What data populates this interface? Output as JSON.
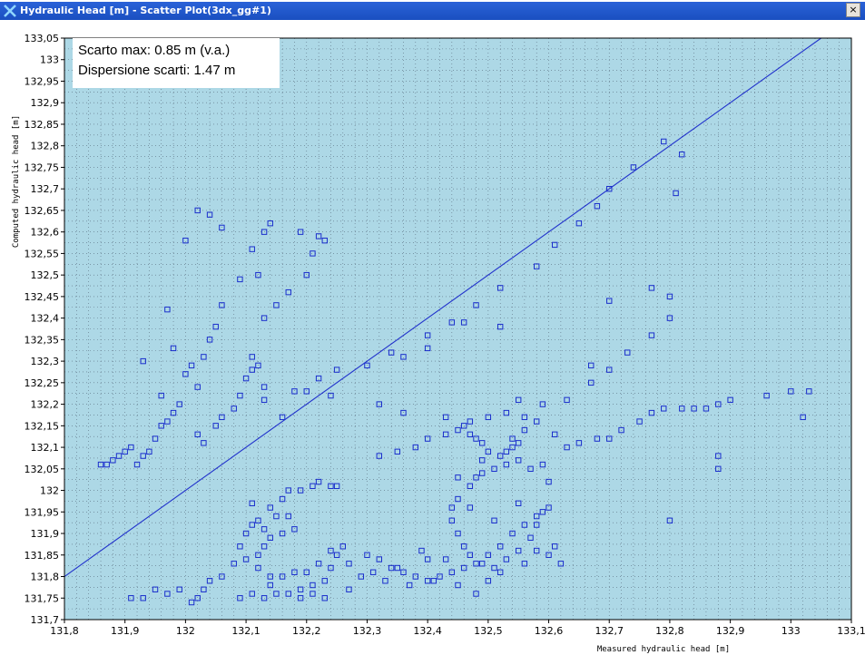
{
  "window": {
    "title": "Hydraulic Head [m] - Scatter Plot(3dx_gg#1)",
    "close_label": "×"
  },
  "info": {
    "line1": "Scarto max: 0.85 m (v.a.)",
    "line2": "Dispersione scarti: 1.47 m"
  },
  "colors": {
    "plot_background": "#add8e6",
    "marker": "#1a2ecc",
    "line": "#2233cc",
    "grid": "#5a6e80"
  },
  "chart_data": {
    "type": "scatter",
    "xlabel": "Measured hydraulic head [m]",
    "ylabel": "Computed hydraulic head [m]",
    "xlim": [
      131.8,
      133.1
    ],
    "ylim": [
      131.7,
      133.05
    ],
    "xticks": [
      "131,8",
      "131,9",
      "132",
      "132,1",
      "132,2",
      "132,3",
      "132,4",
      "132,5",
      "132,6",
      "132,7",
      "132,8",
      "132,9",
      "133",
      "133,1"
    ],
    "yticks": [
      "131,7",
      "131,75",
      "131,8",
      "131,85",
      "131,9",
      "131,95",
      "132",
      "132,05",
      "132,1",
      "132,15",
      "132,2",
      "132,25",
      "132,3",
      "132,35",
      "132,4",
      "132,45",
      "132,5",
      "132,55",
      "132,6",
      "132,65",
      "132,7",
      "132,75",
      "132,8",
      "132,85",
      "132,9",
      "132,95",
      "133",
      "133,05"
    ],
    "grid": true,
    "reference_line": {
      "from": [
        131.8,
        131.8
      ],
      "to": [
        133.05,
        133.05
      ]
    },
    "points": [
      [
        131.86,
        132.06
      ],
      [
        131.87,
        132.06
      ],
      [
        131.88,
        132.07
      ],
      [
        131.89,
        132.08
      ],
      [
        131.9,
        132.09
      ],
      [
        131.91,
        132.1
      ],
      [
        131.92,
        132.06
      ],
      [
        131.93,
        132.08
      ],
      [
        131.94,
        132.09
      ],
      [
        131.95,
        132.12
      ],
      [
        131.96,
        132.15
      ],
      [
        131.97,
        132.16
      ],
      [
        131.98,
        132.18
      ],
      [
        131.99,
        132.2
      ],
      [
        132.0,
        132.27
      ],
      [
        132.01,
        132.29
      ],
      [
        132.02,
        132.24
      ],
      [
        132.03,
        132.31
      ],
      [
        132.04,
        132.35
      ],
      [
        132.05,
        132.38
      ],
      [
        131.97,
        132.42
      ],
      [
        131.98,
        132.33
      ],
      [
        131.93,
        132.3
      ],
      [
        131.96,
        132.22
      ],
      [
        132.02,
        132.13
      ],
      [
        132.03,
        132.11
      ],
      [
        132.05,
        132.15
      ],
      [
        132.06,
        132.17
      ],
      [
        132.08,
        132.19
      ],
      [
        132.09,
        132.22
      ],
      [
        132.1,
        132.26
      ],
      [
        132.11,
        132.28
      ],
      [
        132.12,
        132.29
      ],
      [
        132.13,
        132.24
      ],
      [
        132.06,
        132.43
      ],
      [
        132.09,
        132.49
      ],
      [
        132.12,
        132.5
      ],
      [
        132.15,
        132.43
      ],
      [
        132.13,
        132.6
      ],
      [
        132.14,
        132.62
      ],
      [
        132.11,
        132.56
      ],
      [
        132.02,
        132.65
      ],
      [
        132.04,
        132.64
      ],
      [
        132.06,
        132.61
      ],
      [
        132.0,
        132.58
      ],
      [
        132.19,
        132.6
      ],
      [
        132.22,
        132.59
      ],
      [
        132.23,
        132.58
      ],
      [
        132.21,
        132.55
      ],
      [
        132.2,
        132.5
      ],
      [
        132.17,
        132.46
      ],
      [
        132.13,
        132.4
      ],
      [
        132.11,
        132.31
      ],
      [
        132.13,
        132.21
      ],
      [
        132.16,
        132.17
      ],
      [
        132.18,
        132.23
      ],
      [
        132.2,
        132.23
      ],
      [
        132.22,
        132.26
      ],
      [
        132.25,
        132.28
      ],
      [
        132.24,
        132.22
      ],
      [
        132.3,
        132.29
      ],
      [
        132.34,
        132.32
      ],
      [
        132.36,
        132.31
      ],
      [
        132.4,
        132.36
      ],
      [
        132.44,
        132.39
      ],
      [
        132.48,
        132.43
      ],
      [
        132.52,
        132.47
      ],
      [
        132.58,
        132.52
      ],
      [
        132.61,
        132.57
      ],
      [
        132.65,
        132.62
      ],
      [
        132.68,
        132.66
      ],
      [
        132.7,
        132.7
      ],
      [
        132.74,
        132.75
      ],
      [
        132.79,
        132.81
      ],
      [
        132.82,
        132.78
      ],
      [
        132.81,
        132.69
      ],
      [
        132.8,
        132.45
      ],
      [
        132.77,
        132.47
      ],
      [
        132.8,
        132.4
      ],
      [
        132.77,
        132.36
      ],
      [
        132.73,
        132.32
      ],
      [
        132.7,
        132.28
      ],
      [
        132.67,
        132.29
      ],
      [
        132.67,
        132.25
      ],
      [
        132.7,
        132.44
      ],
      [
        132.63,
        132.21
      ],
      [
        132.59,
        132.2
      ],
      [
        132.55,
        132.21
      ],
      [
        132.52,
        132.38
      ],
      [
        132.46,
        132.39
      ],
      [
        132.4,
        132.33
      ],
      [
        132.32,
        132.2
      ],
      [
        132.36,
        132.18
      ],
      [
        132.43,
        132.17
      ],
      [
        132.47,
        132.16
      ],
      [
        132.5,
        132.17
      ],
      [
        132.53,
        132.18
      ],
      [
        132.56,
        132.17
      ],
      [
        132.58,
        132.16
      ],
      [
        132.61,
        132.13
      ],
      [
        132.63,
        132.1
      ],
      [
        132.65,
        132.11
      ],
      [
        132.68,
        132.12
      ],
      [
        132.7,
        132.12
      ],
      [
        132.72,
        132.14
      ],
      [
        132.75,
        132.16
      ],
      [
        132.77,
        132.18
      ],
      [
        132.79,
        132.19
      ],
      [
        132.82,
        132.19
      ],
      [
        132.84,
        132.19
      ],
      [
        132.86,
        132.19
      ],
      [
        132.88,
        132.2
      ],
      [
        132.9,
        132.21
      ],
      [
        132.96,
        132.22
      ],
      [
        133.0,
        132.23
      ],
      [
        133.03,
        132.23
      ],
      [
        133.02,
        132.17
      ],
      [
        132.88,
        132.08
      ],
      [
        132.88,
        132.05
      ],
      [
        132.8,
        131.93
      ],
      [
        132.32,
        132.08
      ],
      [
        132.35,
        132.09
      ],
      [
        132.38,
        132.1
      ],
      [
        132.4,
        132.12
      ],
      [
        132.43,
        132.13
      ],
      [
        132.45,
        132.14
      ],
      [
        132.46,
        132.15
      ],
      [
        132.47,
        132.13
      ],
      [
        132.48,
        132.12
      ],
      [
        132.49,
        132.11
      ],
      [
        132.5,
        132.09
      ],
      [
        132.52,
        132.08
      ],
      [
        132.53,
        132.09
      ],
      [
        132.54,
        132.1
      ],
      [
        132.55,
        132.11
      ],
      [
        132.55,
        132.07
      ],
      [
        132.53,
        132.06
      ],
      [
        132.51,
        132.05
      ],
      [
        132.49,
        132.04
      ],
      [
        132.48,
        132.03
      ],
      [
        132.47,
        132.01
      ],
      [
        132.45,
        131.98
      ],
      [
        132.44,
        131.96
      ],
      [
        132.44,
        131.93
      ],
      [
        132.45,
        131.9
      ],
      [
        132.46,
        131.87
      ],
      [
        132.47,
        131.85
      ],
      [
        132.49,
        131.83
      ],
      [
        132.51,
        131.82
      ],
      [
        132.53,
        131.84
      ],
      [
        132.55,
        131.86
      ],
      [
        132.57,
        131.89
      ],
      [
        132.58,
        131.92
      ],
      [
        132.59,
        131.95
      ],
      [
        132.6,
        131.96
      ],
      [
        132.58,
        131.94
      ],
      [
        132.56,
        131.92
      ],
      [
        132.54,
        131.9
      ],
      [
        132.52,
        131.87
      ],
      [
        132.5,
        131.85
      ],
      [
        132.48,
        131.83
      ],
      [
        132.46,
        131.82
      ],
      [
        132.44,
        131.81
      ],
      [
        132.42,
        131.8
      ],
      [
        132.4,
        131.79
      ],
      [
        132.38,
        131.8
      ],
      [
        132.36,
        131.81
      ],
      [
        132.34,
        131.82
      ],
      [
        132.32,
        131.84
      ],
      [
        132.31,
        131.81
      ],
      [
        132.33,
        131.79
      ],
      [
        132.37,
        131.78
      ],
      [
        132.41,
        131.79
      ],
      [
        132.45,
        131.78
      ],
      [
        132.48,
        131.76
      ],
      [
        132.5,
        131.79
      ],
      [
        132.52,
        131.81
      ],
      [
        132.56,
        131.83
      ],
      [
        132.58,
        131.86
      ],
      [
        132.61,
        131.87
      ],
      [
        132.56,
        132.14
      ],
      [
        132.57,
        132.05
      ],
      [
        132.6,
        132.02
      ],
      [
        132.59,
        132.06
      ],
      [
        132.54,
        132.12
      ],
      [
        132.49,
        132.07
      ],
      [
        132.45,
        132.03
      ],
      [
        132.51,
        131.93
      ],
      [
        132.55,
        131.97
      ],
      [
        132.47,
        131.96
      ],
      [
        132.4,
        131.84
      ],
      [
        132.35,
        131.82
      ],
      [
        132.3,
        131.85
      ],
      [
        132.27,
        131.83
      ],
      [
        132.39,
        131.86
      ],
      [
        132.43,
        131.84
      ],
      [
        132.6,
        131.85
      ],
      [
        132.62,
        131.83
      ],
      [
        132.09,
        131.75
      ],
      [
        132.11,
        131.76
      ],
      [
        132.13,
        131.75
      ],
      [
        132.15,
        131.76
      ],
      [
        132.17,
        131.76
      ],
      [
        132.19,
        131.77
      ],
      [
        132.21,
        131.78
      ],
      [
        132.23,
        131.79
      ],
      [
        132.24,
        131.82
      ],
      [
        132.25,
        131.85
      ],
      [
        132.26,
        131.87
      ],
      [
        132.24,
        131.86
      ],
      [
        132.22,
        131.83
      ],
      [
        132.2,
        131.81
      ],
      [
        132.18,
        131.81
      ],
      [
        132.16,
        131.8
      ],
      [
        132.14,
        131.8
      ],
      [
        132.12,
        131.82
      ],
      [
        132.1,
        131.84
      ],
      [
        132.09,
        131.87
      ],
      [
        132.1,
        131.9
      ],
      [
        132.11,
        131.92
      ],
      [
        132.12,
        131.93
      ],
      [
        132.13,
        131.91
      ],
      [
        132.14,
        131.89
      ],
      [
        132.16,
        131.9
      ],
      [
        132.18,
        131.91
      ],
      [
        132.17,
        131.94
      ],
      [
        132.16,
        131.98
      ],
      [
        132.17,
        132.0
      ],
      [
        132.19,
        132.0
      ],
      [
        132.21,
        132.01
      ],
      [
        132.22,
        132.02
      ],
      [
        132.24,
        132.01
      ],
      [
        132.25,
        132.01
      ],
      [
        132.13,
        131.87
      ],
      [
        132.12,
        131.85
      ],
      [
        132.08,
        131.83
      ],
      [
        132.06,
        131.8
      ],
      [
        132.04,
        131.79
      ],
      [
        132.03,
        131.77
      ],
      [
        132.02,
        131.75
      ],
      [
        132.01,
        131.74
      ],
      [
        131.99,
        131.77
      ],
      [
        131.97,
        131.76
      ],
      [
        131.95,
        131.77
      ],
      [
        131.93,
        131.75
      ],
      [
        131.91,
        131.75
      ],
      [
        132.14,
        131.78
      ],
      [
        132.19,
        131.75
      ],
      [
        132.27,
        131.77
      ],
      [
        132.29,
        131.8
      ],
      [
        132.23,
        131.75
      ],
      [
        132.21,
        131.76
      ],
      [
        132.14,
        131.96
      ],
      [
        132.15,
        131.94
      ],
      [
        132.11,
        131.97
      ]
    ]
  }
}
